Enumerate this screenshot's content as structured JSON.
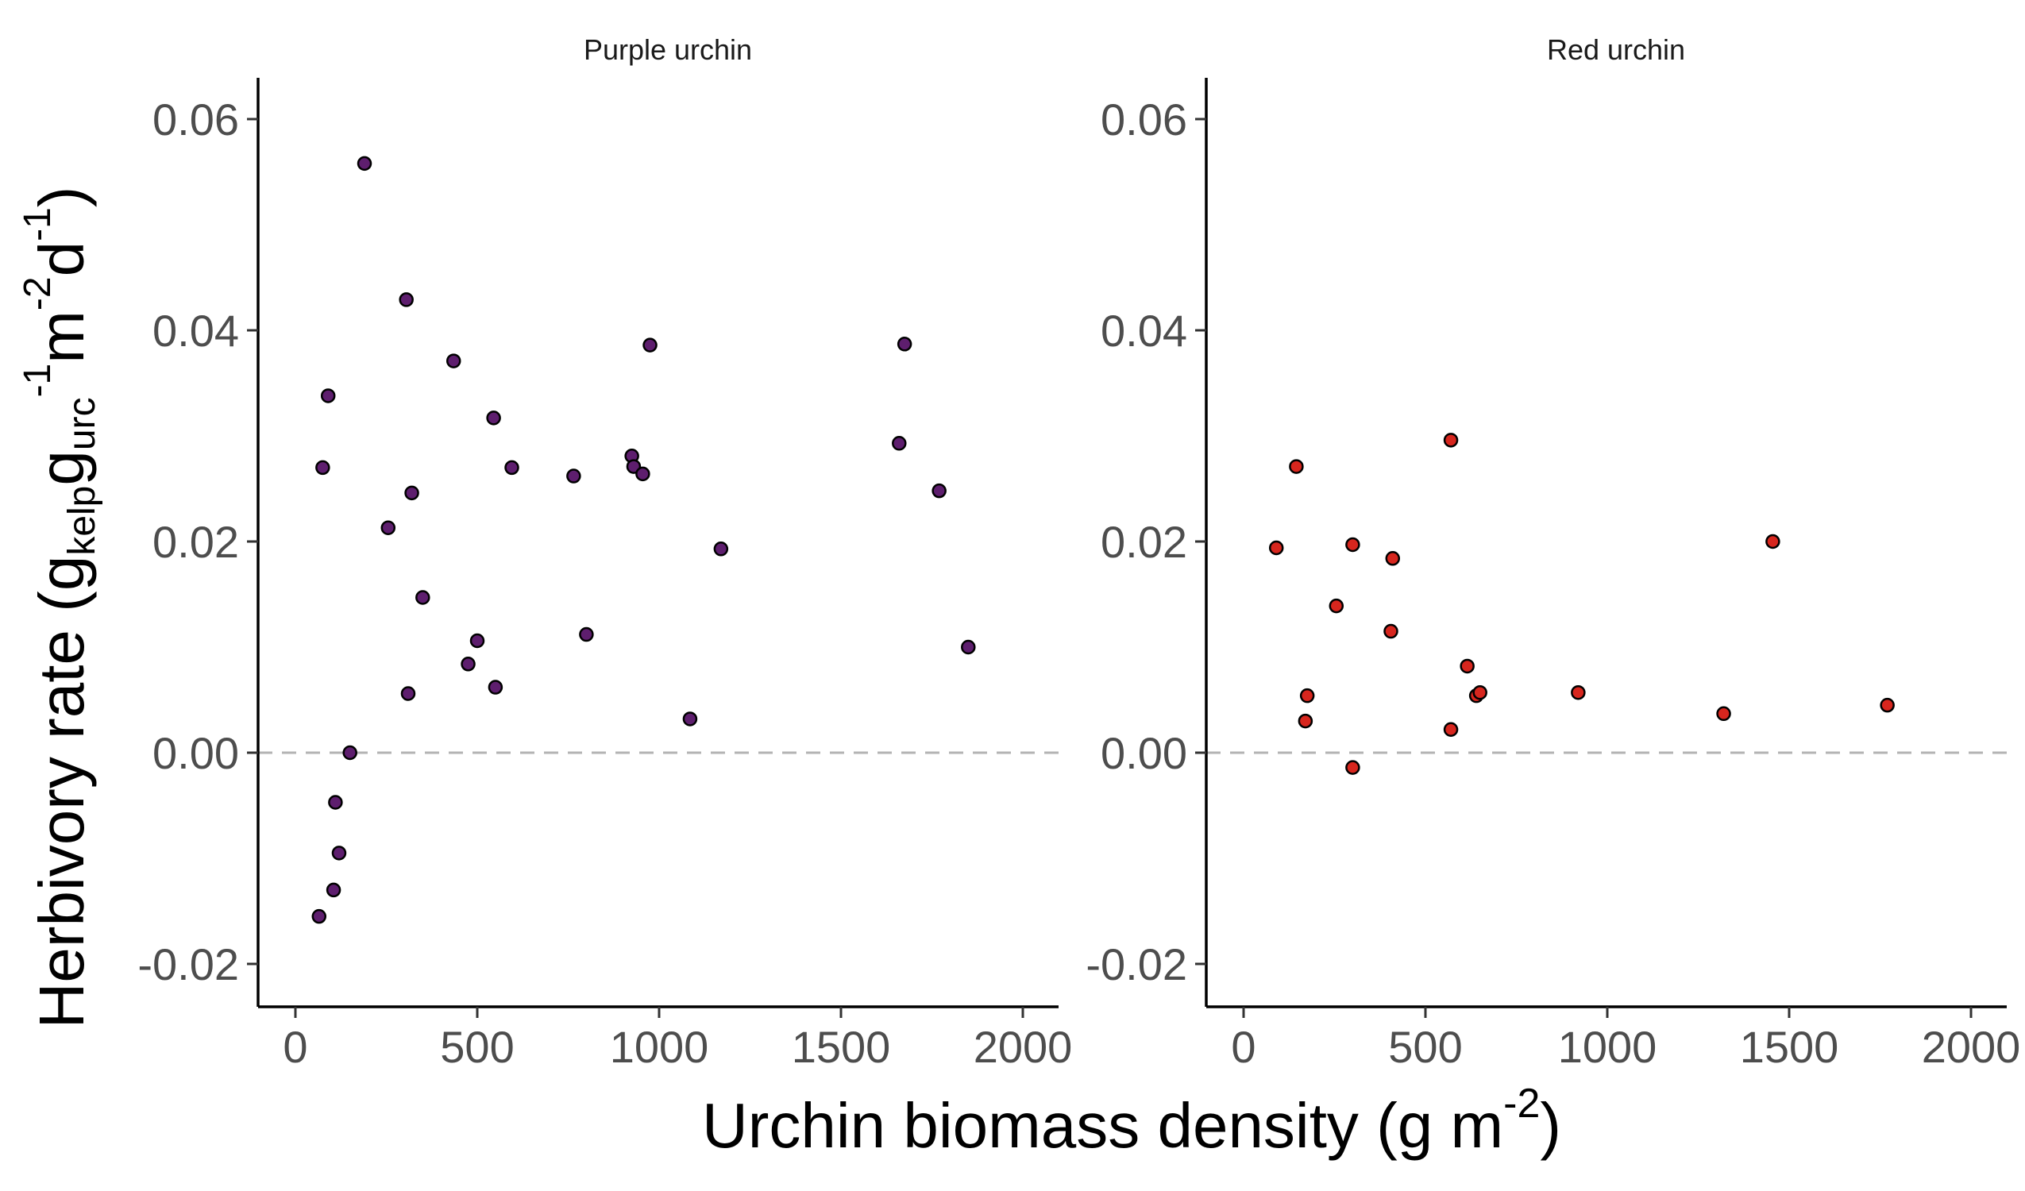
{
  "chart_data": {
    "type": "scatter",
    "xlabel": "Urchin biomass density (g m-2)",
    "ylabel": "Herbivory rate (gkelpgurc-1m-2d-1)",
    "xlim": [
      -100,
      2100
    ],
    "ylim": [
      -0.024,
      0.064
    ],
    "x_ticks": [
      0,
      500,
      1000,
      1500,
      2000
    ],
    "x_tick_labels": [
      "0",
      "500",
      "1000",
      "1500",
      "2000"
    ],
    "y_ticks": [
      -0.02,
      0,
      0.02,
      0.04,
      0.06
    ],
    "y_tick_labels": [
      "-0.02",
      "0.00",
      "0.02",
      "0.04",
      "0.06"
    ],
    "reference_line": {
      "y": 0,
      "style": "dashed",
      "color": "#b3b3b3"
    },
    "grid": false,
    "panels": [
      {
        "title": "Purple urchin",
        "color": "#5e1e6e",
        "points": [
          {
            "x": 65,
            "y": -0.0155
          },
          {
            "x": 75,
            "y": 0.027
          },
          {
            "x": 90,
            "y": 0.0338
          },
          {
            "x": 105,
            "y": -0.013
          },
          {
            "x": 110,
            "y": -0.0047
          },
          {
            "x": 120,
            "y": -0.0095
          },
          {
            "x": 150,
            "y": 0.0
          },
          {
            "x": 190,
            "y": 0.0558
          },
          {
            "x": 255,
            "y": 0.0213
          },
          {
            "x": 305,
            "y": 0.0429
          },
          {
            "x": 310,
            "y": 0.0056
          },
          {
            "x": 320,
            "y": 0.0246
          },
          {
            "x": 350,
            "y": 0.0147
          },
          {
            "x": 435,
            "y": 0.0371
          },
          {
            "x": 475,
            "y": 0.0084
          },
          {
            "x": 500,
            "y": 0.0106
          },
          {
            "x": 545,
            "y": 0.0317
          },
          {
            "x": 550,
            "y": 0.0062
          },
          {
            "x": 595,
            "y": 0.027
          },
          {
            "x": 765,
            "y": 0.0262
          },
          {
            "x": 800,
            "y": 0.0112
          },
          {
            "x": 925,
            "y": 0.0281
          },
          {
            "x": 930,
            "y": 0.0271
          },
          {
            "x": 955,
            "y": 0.0264
          },
          {
            "x": 975,
            "y": 0.0386
          },
          {
            "x": 1085,
            "y": 0.0032
          },
          {
            "x": 1170,
            "y": 0.0193
          },
          {
            "x": 1660,
            "y": 0.0293
          },
          {
            "x": 1675,
            "y": 0.0387
          },
          {
            "x": 1770,
            "y": 0.0248
          },
          {
            "x": 1850,
            "y": 0.01
          }
        ]
      },
      {
        "title": "Red urchin",
        "color": "#d7261e",
        "points": [
          {
            "x": 90,
            "y": 0.0194
          },
          {
            "x": 145,
            "y": 0.0271
          },
          {
            "x": 170,
            "y": 0.003
          },
          {
            "x": 175,
            "y": 0.0054
          },
          {
            "x": 255,
            "y": 0.0139
          },
          {
            "x": 300,
            "y": 0.0197
          },
          {
            "x": 300,
            "y": -0.0014
          },
          {
            "x": 405,
            "y": 0.0115
          },
          {
            "x": 410,
            "y": 0.0184
          },
          {
            "x": 570,
            "y": 0.0022
          },
          {
            "x": 570,
            "y": 0.0296
          },
          {
            "x": 615,
            "y": 0.0082
          },
          {
            "x": 640,
            "y": 0.0054
          },
          {
            "x": 650,
            "y": 0.0057
          },
          {
            "x": 920,
            "y": 0.0057
          },
          {
            "x": 1320,
            "y": 0.0037
          },
          {
            "x": 1455,
            "y": 0.02
          },
          {
            "x": 1770,
            "y": 0.0045
          }
        ]
      }
    ]
  }
}
